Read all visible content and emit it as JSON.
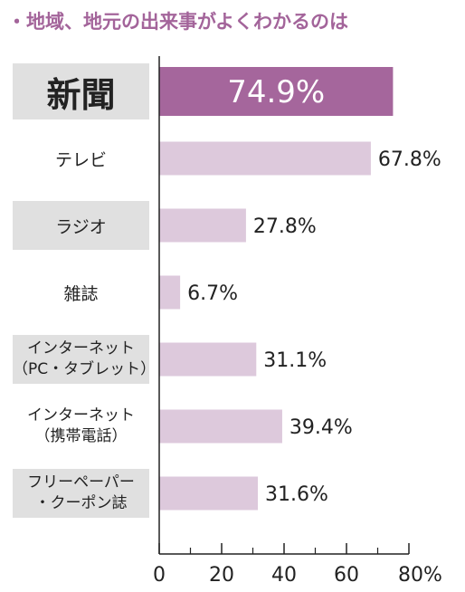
{
  "title": "・地域、地元の出来事がよくわかるのは",
  "colors": {
    "highlight_bar": "#a5669c",
    "bar": "#ddc9dc",
    "label_bg": "#e0e0e0",
    "title": "#a3649a"
  },
  "chart_data": {
    "type": "bar",
    "orientation": "horizontal",
    "categories": [
      "新聞",
      "テレビ",
      "ラジオ",
      "雑誌",
      "インターネット（PC・タブレット）",
      "インターネット（携帯電話）",
      "フリーペーパー・クーポン誌"
    ],
    "category_lines": [
      [
        "新聞"
      ],
      [
        "テレビ"
      ],
      [
        "ラジオ"
      ],
      [
        "雑誌"
      ],
      [
        "インターネット",
        "（PC・タブレット）"
      ],
      [
        "インターネット",
        "（携帯電話）"
      ],
      [
        "フリーペーパー",
        "・クーポン誌"
      ]
    ],
    "values": [
      74.9,
      67.8,
      27.8,
      6.7,
      31.1,
      39.4,
      31.6
    ],
    "value_labels": [
      "74.9%",
      "67.8%",
      "27.8%",
      "6.7%",
      "31.1%",
      "39.4%",
      "31.6%"
    ],
    "highlight_index": 0,
    "xlim": [
      0,
      80
    ],
    "xticks": [
      0,
      20,
      40,
      60,
      80
    ],
    "xtick_labels": [
      "0",
      "20",
      "40",
      "60",
      "80%"
    ],
    "grid": false,
    "shaded_labels": [
      0,
      2,
      4,
      6
    ]
  }
}
